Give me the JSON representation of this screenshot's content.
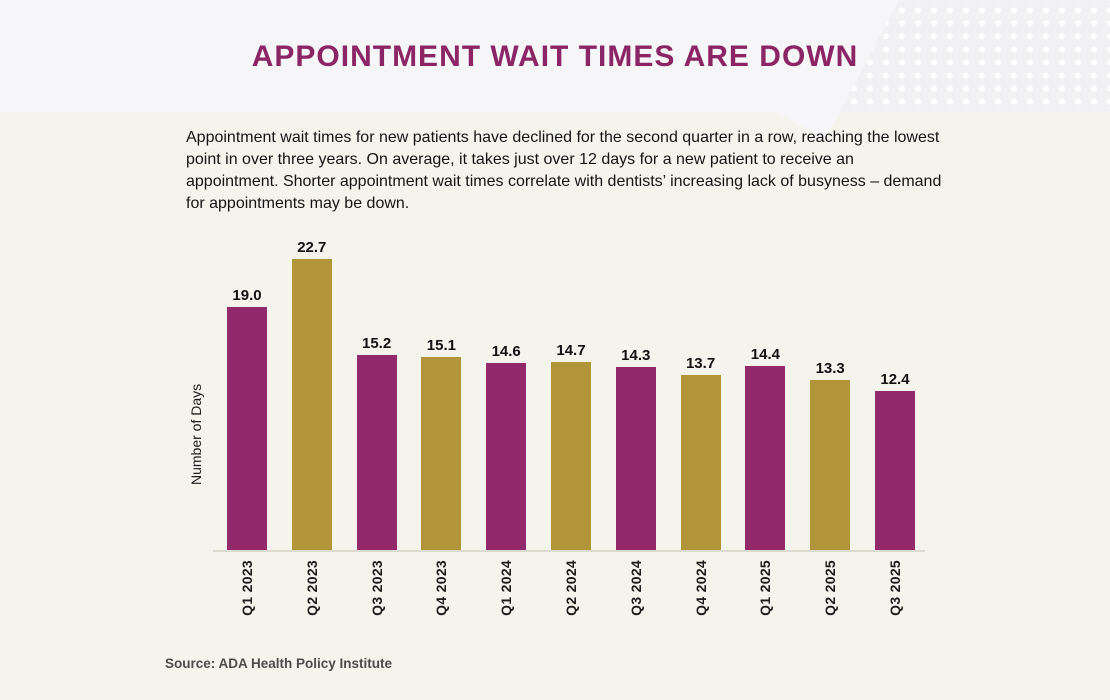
{
  "page": {
    "title": "APPOINTMENT WAIT TIMES ARE DOWN",
    "description": "Appointment wait times for new patients have declined for the second quarter in a row, reaching the lowest point in over three years. On average, it takes just over 12 days for a new patient to receive an appointment. Shorter appointment wait times correlate with dentists’ increasing lack of busyness – demand for appointments may be down.",
    "source": "Source: ADA Health Policy Institute"
  },
  "colors": {
    "title_text": "#8b2565",
    "bar_magenta": "#92296b",
    "bar_gold": "#b2953a",
    "header_background": "#f6f6f8",
    "body_background": "#f5f4ec",
    "axis_line": "#dbdacf"
  },
  "chart_data": {
    "type": "bar",
    "title": "APPOINTMENT WAIT TIMES ARE DOWN",
    "categories": [
      "Q1 2023",
      "Q2 2023",
      "Q3 2023",
      "Q4 2023",
      "Q1 2024",
      "Q2 2024",
      "Q3 2024",
      "Q4 2024",
      "Q1 2025",
      "Q2 2025",
      "Q3 2025"
    ],
    "values": [
      19.0,
      22.7,
      15.2,
      15.1,
      14.6,
      14.7,
      14.3,
      13.7,
      14.4,
      13.3,
      12.4
    ],
    "value_label_format": "one_decimal",
    "xlabel": "",
    "ylabel": "Number of Days",
    "ylim": [
      0,
      25
    ],
    "grid": false,
    "legend": false,
    "bar_color_pattern": [
      "#92296b",
      "#b2953a"
    ]
  }
}
